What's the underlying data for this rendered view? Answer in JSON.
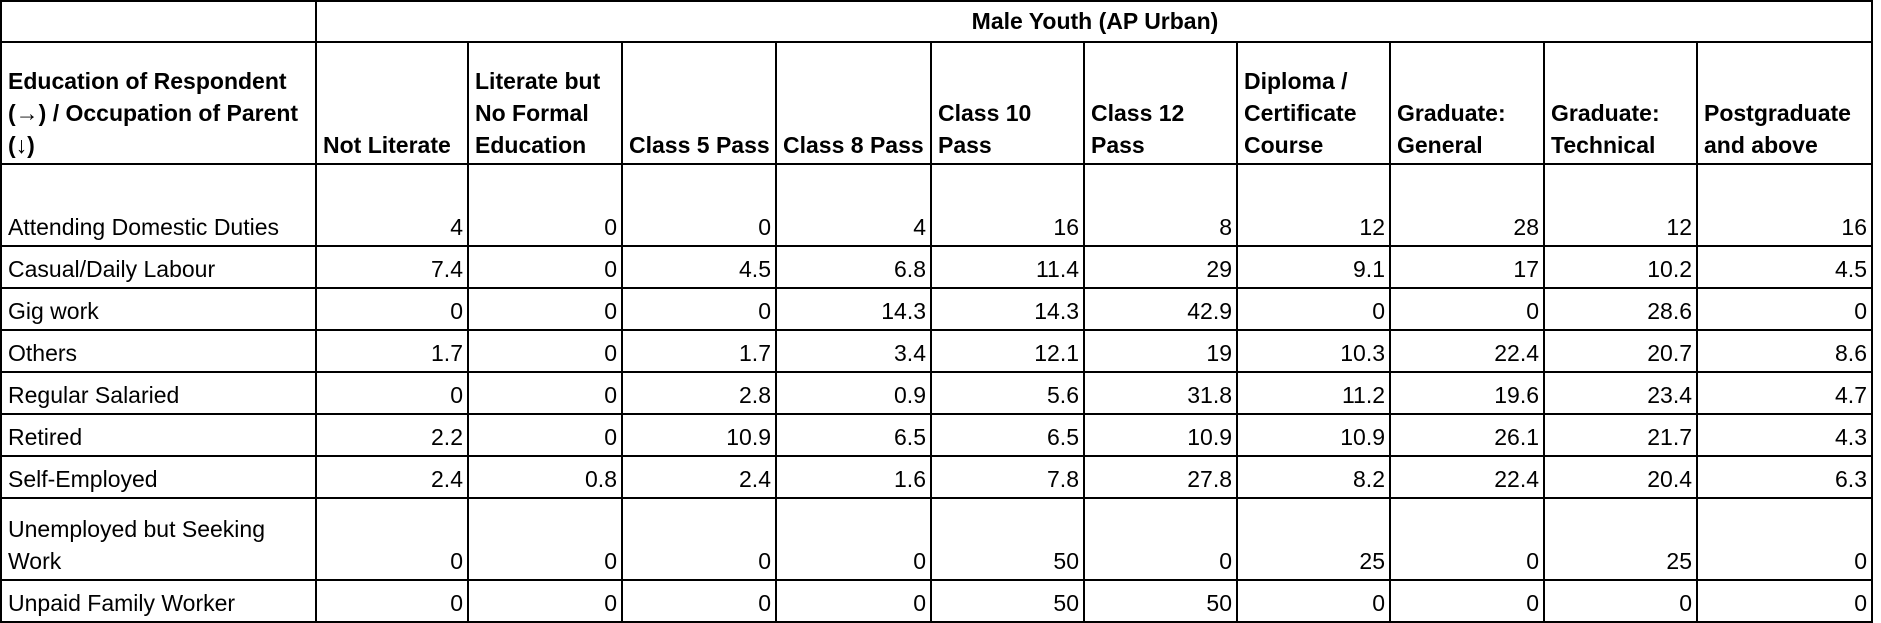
{
  "table": {
    "title": "Male Youth (AP Urban)",
    "corner_header": "Education of Respondent (→) / Occupation of Parent (↓)",
    "columns": [
      "Not Literate",
      "Literate but No Formal Education",
      "Class 5 Pass",
      "Class 8 Pass",
      "Class 10 Pass",
      "Class 12 Pass",
      "Diploma / Certificate Course",
      "Graduate: General",
      "Graduate: Technical",
      "Postgraduate and above"
    ],
    "rows": [
      {
        "label": "Attending Domestic Duties",
        "values": [
          "4",
          "0",
          "0",
          "4",
          "16",
          "8",
          "12",
          "28",
          "12",
          "16"
        ]
      },
      {
        "label": "Casual/Daily Labour",
        "values": [
          "7.4",
          "0",
          "4.5",
          "6.8",
          "11.4",
          "29",
          "9.1",
          "17",
          "10.2",
          "4.5"
        ]
      },
      {
        "label": "Gig work",
        "values": [
          "0",
          "0",
          "0",
          "14.3",
          "14.3",
          "42.9",
          "0",
          "0",
          "28.6",
          "0"
        ]
      },
      {
        "label": "Others",
        "values": [
          "1.7",
          "0",
          "1.7",
          "3.4",
          "12.1",
          "19",
          "10.3",
          "22.4",
          "20.7",
          "8.6"
        ]
      },
      {
        "label": "Regular Salaried",
        "values": [
          "0",
          "0",
          "2.8",
          "0.9",
          "5.6",
          "31.8",
          "11.2",
          "19.6",
          "23.4",
          "4.7"
        ]
      },
      {
        "label": "Retired",
        "values": [
          "2.2",
          "0",
          "10.9",
          "6.5",
          "6.5",
          "10.9",
          "10.9",
          "26.1",
          "21.7",
          "4.3"
        ]
      },
      {
        "label": "Self-Employed",
        "values": [
          "2.4",
          "0.8",
          "2.4",
          "1.6",
          "7.8",
          "27.8",
          "8.2",
          "22.4",
          "20.4",
          "6.3"
        ]
      },
      {
        "label": "Unemployed but Seeking Work",
        "values": [
          "0",
          "0",
          "0",
          "0",
          "50",
          "0",
          "25",
          "0",
          "25",
          "0"
        ]
      },
      {
        "label": "Unpaid Family Worker",
        "values": [
          "0",
          "0",
          "0",
          "0",
          "50",
          "50",
          "0",
          "0",
          "0",
          "0"
        ]
      }
    ]
  }
}
